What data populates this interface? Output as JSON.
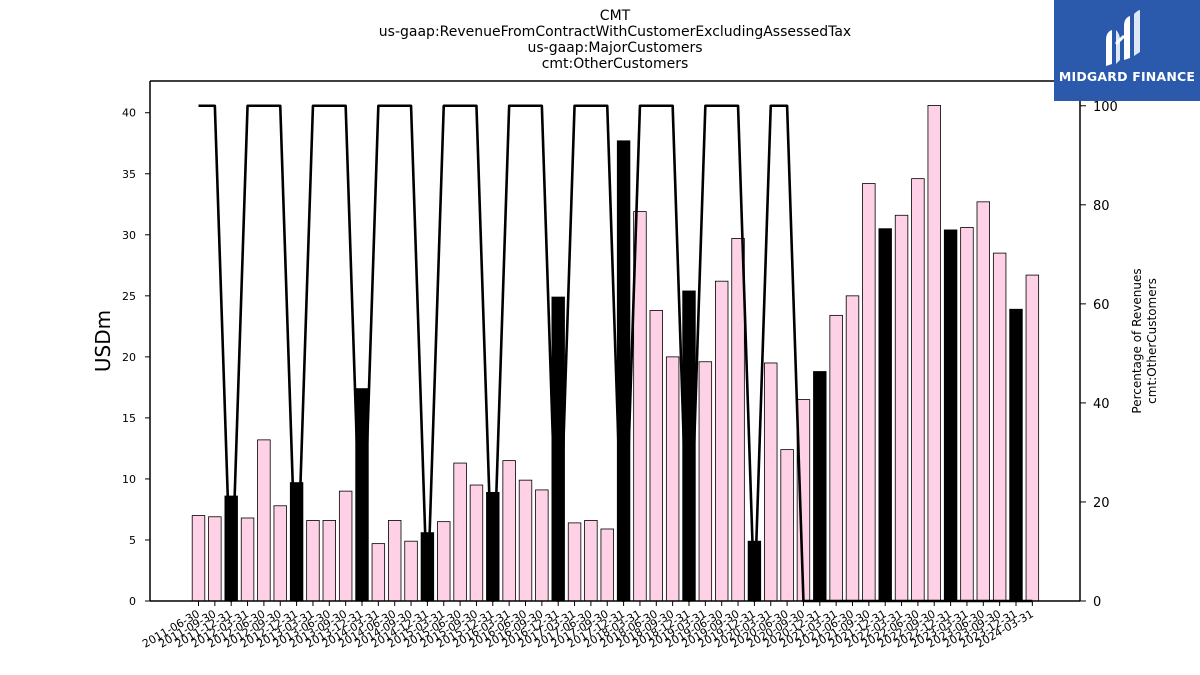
{
  "chart_data": {
    "type": "bar",
    "title_lines": [
      "CMT",
      "us-gaap:RevenueFromContractWithCustomerExcludingAssessedTax",
      "us-gaap:MajorCustomers",
      "cmt:OtherCustomers"
    ],
    "ylabel": "USDm",
    "ylabel_right": [
      "Percentage of Revenues",
      "cmt:OtherCustomers"
    ],
    "ylim": [
      0,
      42.6
    ],
    "ylim_right": [
      0,
      105
    ],
    "yticks": [
      0,
      5,
      10,
      15,
      20,
      25,
      30,
      35,
      40
    ],
    "yticks_right": [
      0,
      20,
      40,
      60,
      80,
      100
    ],
    "categories": [
      "2011-06-30",
      "2011-09-30",
      "2011-12-31",
      "2012-03-31",
      "2012-06-30",
      "2012-09-30",
      "2012-12-31",
      "2013-03-31",
      "2013-06-30",
      "2013-09-30",
      "2013-12-31",
      "2014-03-31",
      "2014-06-30",
      "2014-09-30",
      "2014-12-31",
      "2015-03-31",
      "2015-06-30",
      "2015-09-30",
      "2015-12-31",
      "2016-03-31",
      "2016-06-30",
      "2016-09-30",
      "2016-12-31",
      "2017-03-31",
      "2017-06-30",
      "2017-09-30",
      "2017-12-31",
      "2018-03-31",
      "2018-06-30",
      "2018-09-30",
      "2018-12-31",
      "2019-03-31",
      "2019-06-30",
      "2019-09-30",
      "2019-12-31",
      "2020-03-31",
      "2020-06-30",
      "2020-09-30",
      "2020-12-31",
      "2021-03-31",
      "2021-06-30",
      "2021-09-30",
      "2021-12-31",
      "2022-03-31",
      "2022-06-30",
      "2022-09-30",
      "2022-12-31",
      "2023-03-31",
      "2023-06-30",
      "2023-09-30",
      "2023-12-31",
      "2024-03-31"
    ],
    "series": [
      {
        "values": [
          7.0,
          6.9,
          8.6,
          6.8,
          13.2,
          7.8,
          9.7,
          6.6,
          6.6,
          9.0,
          17.4,
          4.7,
          6.6,
          4.9,
          5.6,
          6.5,
          11.3,
          9.5,
          8.9,
          11.5,
          9.9,
          9.1,
          24.9,
          6.4,
          6.6,
          5.9,
          37.7,
          31.9,
          23.8,
          20.0,
          25.4,
          19.6,
          26.2,
          29.7,
          4.9,
          19.5,
          12.4,
          16.5,
          18.8,
          23.4,
          25.0,
          34.2,
          30.5,
          31.6,
          34.6,
          40.6,
          30.4,
          30.6,
          32.7,
          28.5,
          23.9,
          26.7
        ],
        "colors": [
          "#ffd1e6",
          "#ffd1e6",
          "#000000",
          "#ffd1e6",
          "#ffd1e6",
          "#ffd1e6",
          "#000000",
          "#ffd1e6",
          "#ffd1e6",
          "#ffd1e6",
          "#000000",
          "#ffd1e6",
          "#ffd1e6",
          "#ffd1e6",
          "#000000",
          "#ffd1e6",
          "#ffd1e6",
          "#ffd1e6",
          "#000000",
          "#ffd1e6",
          "#ffd1e6",
          "#ffd1e6",
          "#000000",
          "#ffd1e6",
          "#ffd1e6",
          "#ffd1e6",
          "#000000",
          "#ffd1e6",
          "#ffd1e6",
          "#ffd1e6",
          "#000000",
          "#ffd1e6",
          "#ffd1e6",
          "#ffd1e6",
          "#000000",
          "#ffd1e6",
          "#ffd1e6",
          "#ffd1e6",
          "#000000",
          "#ffd1e6",
          "#ffd1e6",
          "#ffd1e6",
          "#000000",
          "#ffd1e6",
          "#ffd1e6",
          "#ffd1e6",
          "#000000",
          "#ffd1e6",
          "#ffd1e6",
          "#ffd1e6",
          "#000000",
          "#ffd1e6"
        ]
      },
      {
        "axis": "right",
        "type": "line",
        "color": "#000000",
        "values": [
          100,
          100,
          0,
          100,
          100,
          100,
          0,
          100,
          100,
          100,
          0,
          100,
          100,
          100,
          0,
          100,
          100,
          100,
          0,
          100,
          100,
          100,
          0,
          100,
          100,
          100,
          0,
          100,
          100,
          100,
          0,
          100,
          100,
          100,
          0,
          100,
          100,
          0,
          0,
          0,
          0,
          0,
          0,
          0,
          0,
          0,
          0,
          0,
          0,
          0,
          0,
          0
        ]
      }
    ]
  },
  "logo": {
    "text": "MIDGARD FINANCE",
    "bg": "#2b5aad"
  }
}
